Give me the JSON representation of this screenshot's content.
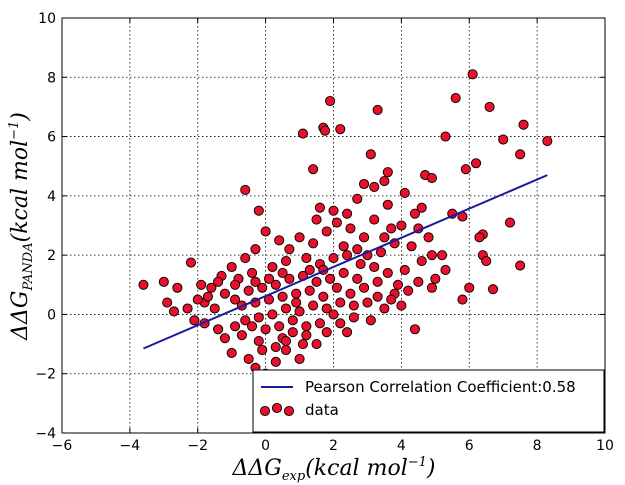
{
  "chart_data": {
    "type": "scatter",
    "title": "",
    "xlabel_parts": {
      "prefix": "ΔΔG",
      "sub": "exp",
      "suffix": "(kcal mol",
      "sup": "−1",
      "close": ")"
    },
    "ylabel_parts": {
      "prefix": "ΔΔG",
      "sub": "PANDA",
      "suffix": "(kcal mol",
      "sup": "−1",
      "close": ")"
    },
    "xlim": [
      -6,
      10
    ],
    "ylim": [
      -4,
      10
    ],
    "xticks": [
      -6,
      -4,
      -2,
      0,
      2,
      4,
      6,
      8,
      10
    ],
    "yticks": [
      -4,
      -2,
      0,
      2,
      4,
      6,
      8,
      10
    ],
    "xtick_labels": [
      "−6",
      "−4",
      "−2",
      "0",
      "2",
      "4",
      "6",
      "8",
      "10"
    ],
    "ytick_labels": [
      "−4",
      "−2",
      "0",
      "2",
      "4",
      "6",
      "8",
      "10"
    ],
    "grid": true,
    "legend_position": "lower-right",
    "fit_line": {
      "name": "Pearson Correlation Coefficient:0.58",
      "color": "#1a1aa0",
      "x": [
        -3.6,
        8.3
      ],
      "y": [
        -1.15,
        4.7
      ]
    },
    "series": [
      {
        "name": "data",
        "marker_color": "#e8102a",
        "edge_color": "#000000",
        "points": [
          [
            6.1,
            8.1
          ],
          [
            1.9,
            7.2
          ],
          [
            5.6,
            7.3
          ],
          [
            6.6,
            7.0
          ],
          [
            3.3,
            6.9
          ],
          [
            1.7,
            6.3
          ],
          [
            1.75,
            6.2
          ],
          [
            2.2,
            6.25
          ],
          [
            1.1,
            6.1
          ],
          [
            7.6,
            6.4
          ],
          [
            5.3,
            6.0
          ],
          [
            7.0,
            5.9
          ],
          [
            8.3,
            5.85
          ],
          [
            3.1,
            5.4
          ],
          [
            6.2,
            5.1
          ],
          [
            7.5,
            5.4
          ],
          [
            5.9,
            4.9
          ],
          [
            3.6,
            4.8
          ],
          [
            1.4,
            4.9
          ],
          [
            3.2,
            4.3
          ],
          [
            4.7,
            4.7
          ],
          [
            4.9,
            4.6
          ],
          [
            2.9,
            4.4
          ],
          [
            3.5,
            4.5
          ],
          [
            4.1,
            4.1
          ],
          [
            -0.6,
            4.2
          ],
          [
            2.7,
            3.9
          ],
          [
            3.6,
            3.7
          ],
          [
            4.6,
            3.6
          ],
          [
            1.6,
            3.6
          ],
          [
            -0.2,
            3.5
          ],
          [
            4.4,
            3.4
          ],
          [
            5.5,
            3.4
          ],
          [
            7.2,
            3.1
          ],
          [
            5.8,
            3.3
          ],
          [
            6.4,
            2.7
          ],
          [
            6.3,
            2.6
          ],
          [
            6.4,
            2.0
          ],
          [
            6.5,
            1.8
          ],
          [
            7.5,
            1.65
          ],
          [
            6.0,
            0.9
          ],
          [
            6.7,
            0.85
          ],
          [
            5.8,
            0.5
          ],
          [
            4.4,
            -0.5
          ],
          [
            -0.9,
            0.5
          ],
          [
            -3.6,
            1.0
          ],
          [
            -3.0,
            1.1
          ],
          [
            -2.6,
            0.9
          ],
          [
            -2.9,
            0.4
          ],
          [
            -2.7,
            0.1
          ],
          [
            -2.2,
            1.75
          ],
          [
            -1.9,
            1.0
          ],
          [
            -1.8,
            0.4
          ],
          [
            -1.5,
            0.2
          ],
          [
            -2.1,
            -0.2
          ],
          [
            -1.8,
            -0.3
          ],
          [
            -1.4,
            -0.5
          ],
          [
            -1.2,
            -0.8
          ],
          [
            -1.0,
            -1.3
          ],
          [
            -0.5,
            -1.5
          ],
          [
            -0.3,
            -1.8
          ],
          [
            0.0,
            -2.0
          ],
          [
            0.3,
            -1.6
          ],
          [
            0.6,
            -1.2
          ],
          [
            1.0,
            -1.5
          ],
          [
            1.5,
            -1.0
          ],
          [
            1.8,
            -0.6
          ],
          [
            1.2,
            -0.4
          ],
          [
            0.5,
            -0.8
          ],
          [
            -0.2,
            -0.9
          ],
          [
            0.8,
            -0.2
          ],
          [
            2.2,
            -0.3
          ],
          [
            2.6,
            -0.1
          ],
          [
            3.1,
            -0.2
          ],
          [
            3.5,
            0.2
          ],
          [
            4.0,
            0.3
          ],
          [
            3.8,
            0.7
          ],
          [
            4.2,
            0.8
          ],
          [
            5.0,
            1.2
          ],
          [
            5.2,
            2.0
          ],
          [
            4.8,
            2.6
          ],
          [
            4.5,
            2.9
          ],
          [
            4.0,
            3.0
          ],
          [
            3.8,
            2.4
          ],
          [
            3.4,
            2.1
          ],
          [
            2.9,
            2.6
          ],
          [
            2.5,
            2.9
          ],
          [
            2.1,
            3.1
          ],
          [
            1.8,
            2.8
          ],
          [
            1.4,
            2.4
          ],
          [
            1.0,
            2.6
          ],
          [
            0.7,
            2.2
          ],
          [
            0.4,
            2.5
          ],
          [
            0.0,
            2.8
          ],
          [
            -0.3,
            2.2
          ],
          [
            -0.6,
            1.9
          ],
          [
            -1.0,
            1.6
          ],
          [
            -1.3,
            1.3
          ],
          [
            -0.8,
            1.2
          ],
          [
            -0.4,
            1.4
          ],
          [
            0.2,
            1.6
          ],
          [
            0.6,
            1.8
          ],
          [
            1.2,
            1.9
          ],
          [
            1.6,
            1.7
          ],
          [
            2.0,
            1.9
          ],
          [
            2.4,
            2.0
          ],
          [
            2.8,
            1.7
          ],
          [
            3.2,
            1.6
          ],
          [
            3.6,
            1.4
          ],
          [
            4.1,
            1.5
          ],
          [
            4.6,
            1.8
          ],
          [
            3.9,
            1.0
          ],
          [
            3.3,
            1.1
          ],
          [
            2.7,
            1.2
          ],
          [
            2.3,
            1.4
          ],
          [
            1.9,
            1.2
          ],
          [
            1.5,
            1.1
          ],
          [
            1.1,
            1.3
          ],
          [
            0.7,
            1.2
          ],
          [
            0.3,
            1.0
          ],
          [
            -0.1,
            0.9
          ],
          [
            -0.5,
            0.8
          ],
          [
            -0.9,
            1.0
          ],
          [
            -1.2,
            0.7
          ],
          [
            -0.7,
            0.3
          ],
          [
            -0.3,
            0.4
          ],
          [
            0.1,
            0.5
          ],
          [
            0.5,
            0.6
          ],
          [
            0.9,
            0.7
          ],
          [
            1.3,
            0.8
          ],
          [
            1.7,
            0.6
          ],
          [
            2.1,
            0.9
          ],
          [
            2.5,
            0.7
          ],
          [
            2.9,
            0.9
          ],
          [
            3.3,
            0.6
          ],
          [
            3.7,
            0.5
          ],
          [
            2.6,
            0.3
          ],
          [
            2.2,
            0.4
          ],
          [
            1.8,
            0.2
          ],
          [
            1.4,
            0.3
          ],
          [
            1.0,
            0.1
          ],
          [
            0.6,
            0.2
          ],
          [
            0.2,
            0.0
          ],
          [
            -0.2,
            -0.1
          ],
          [
            -0.6,
            -0.2
          ],
          [
            -0.9,
            -0.4
          ],
          [
            -0.4,
            -0.4
          ],
          [
            0.0,
            -0.5
          ],
          [
            0.4,
            -0.4
          ],
          [
            0.8,
            -0.6
          ],
          [
            1.2,
            -0.7
          ],
          [
            1.6,
            -0.3
          ],
          [
            2.0,
            0.0
          ],
          [
            0.3,
            -1.1
          ],
          [
            -0.1,
            -1.2
          ],
          [
            0.6,
            -0.9
          ],
          [
            -0.7,
            -0.7
          ],
          [
            0.9,
            0.4
          ],
          [
            1.3,
            1.5
          ],
          [
            1.7,
            1.5
          ],
          [
            0.5,
            1.4
          ],
          [
            0.1,
            1.2
          ],
          [
            -0.3,
            1.1
          ],
          [
            2.3,
            2.3
          ],
          [
            2.7,
            2.2
          ],
          [
            3.0,
            2.0
          ],
          [
            3.5,
            2.6
          ],
          [
            3.7,
            2.9
          ],
          [
            3.2,
            3.2
          ],
          [
            2.4,
            3.4
          ],
          [
            2.0,
            3.5
          ],
          [
            1.5,
            3.2
          ],
          [
            4.3,
            2.3
          ],
          [
            4.9,
            2.0
          ],
          [
            5.3,
            1.5
          ],
          [
            4.5,
            1.1
          ],
          [
            4.9,
            0.9
          ],
          [
            3.0,
            0.4
          ],
          [
            2.4,
            -0.6
          ],
          [
            1.1,
            -1.0
          ],
          [
            -1.6,
            0.9
          ],
          [
            -1.7,
            0.6
          ],
          [
            -1.4,
            1.1
          ],
          [
            -2.0,
            0.5
          ],
          [
            -2.3,
            0.2
          ]
        ]
      }
    ]
  }
}
